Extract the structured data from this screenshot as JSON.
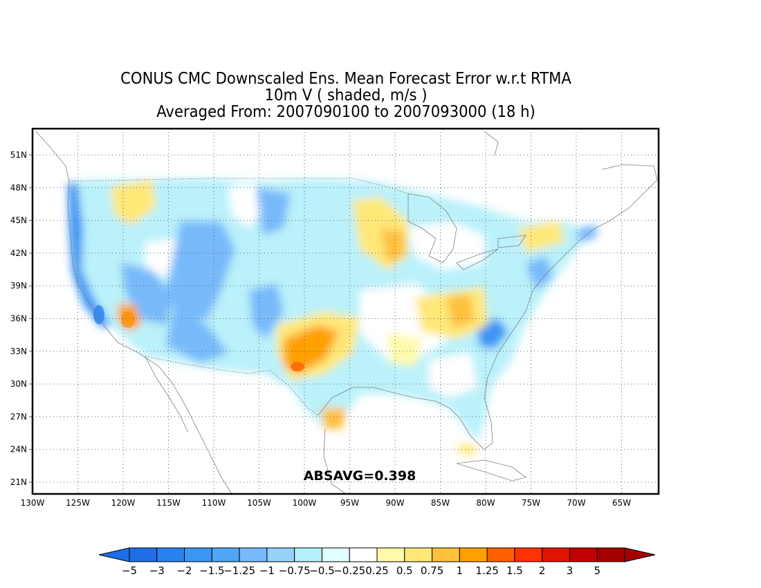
{
  "title": {
    "line1": "CONUS CMC Downscaled Ens. Mean Forecast Error w.r.t RTMA",
    "line2": "10m V ( shaded, m/s )",
    "line3": "Averaged From: 2007090100 to 2007093000 (18 h)"
  },
  "annotation": "ABSAVG=0.398",
  "lat_labels": [
    "51N",
    "48N",
    "45N",
    "42N",
    "39N",
    "36N",
    "33N",
    "30N",
    "27N",
    "24N",
    "21N"
  ],
  "lon_labels": [
    "130W",
    "125W",
    "120W",
    "115W",
    "110W",
    "105W",
    "100W",
    "95W",
    "90W",
    "85W",
    "80W",
    "75W",
    "70W",
    "65W"
  ],
  "colorbar": {
    "labels": [
      "−5",
      "−3",
      "−2",
      "−1.5",
      "−1.25",
      "−1",
      "−0.75",
      "−0.5",
      "−0.25",
      "0.25",
      "0.5",
      "0.75",
      "1",
      "1.25",
      "1.5",
      "2",
      "3",
      "5"
    ],
    "colors": [
      "#1e6ee6",
      "#2882f0",
      "#3c96f5",
      "#50a5f5",
      "#78b9fa",
      "#96d2fa",
      "#b4f0fa",
      "#e1ffff",
      "#ffffff",
      "#fffaaa",
      "#ffe878",
      "#ffc03c",
      "#ffa000",
      "#ff6000",
      "#ff3200",
      "#e11400",
      "#c00000",
      "#a50000"
    ]
  },
  "icons": {
    "map": "conus-map"
  },
  "chart_data": {
    "type": "heatmap",
    "x_range": [
      -130,
      -62
    ],
    "y_range": [
      20,
      52
    ],
    "variable": "10m V forecast error (m/s)",
    "abs_avg": 0.398
  }
}
